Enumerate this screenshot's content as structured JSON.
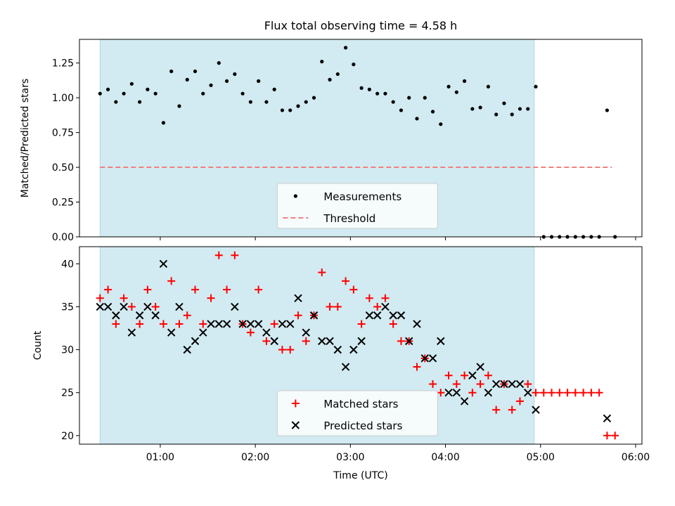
{
  "figure": {
    "title": "Flux total observing time = 4.58 h"
  },
  "colors": {
    "shade": "#add8e6",
    "threshold": "#f08080",
    "matched": "#ff0000",
    "predicted": "#000000",
    "measure": "#000000"
  },
  "chart_data": [
    {
      "type": "scatter",
      "title": "Flux total observing time = 4.58 h",
      "xlabel": "",
      "ylabel": "Matched/Predicted stars",
      "xlim": [
        "00:09",
        "06:04"
      ],
      "ylim": [
        0,
        1.42
      ],
      "yticks": [
        "0.00",
        "0.25",
        "0.50",
        "0.75",
        "1.00",
        "1.25"
      ],
      "xticks": [
        "01:00",
        "02:00",
        "03:00",
        "04:00",
        "05:00",
        "06:00"
      ],
      "shaded_interval": [
        "00:22",
        "04:56"
      ],
      "legend": {
        "position": "bottom-center",
        "entries": [
          "Measurements",
          "Threshold"
        ]
      },
      "threshold": {
        "name": "Threshold",
        "y": 0.5,
        "x": [
          "00:22",
          "05:45"
        ]
      },
      "series": [
        {
          "name": "Measurements",
          "marker": "dot",
          "x": [
            "00:22",
            "00:27",
            "00:32",
            "00:37",
            "00:42",
            "00:47",
            "00:52",
            "00:57",
            "01:02",
            "01:07",
            "01:12",
            "01:17",
            "01:22",
            "01:27",
            "01:32",
            "01:37",
            "01:42",
            "01:47",
            "01:52",
            "01:57",
            "02:02",
            "02:07",
            "02:12",
            "02:17",
            "02:22",
            "02:27",
            "02:32",
            "02:37",
            "02:42",
            "02:47",
            "02:52",
            "02:57",
            "03:02",
            "03:07",
            "03:12",
            "03:17",
            "03:22",
            "03:27",
            "03:32",
            "03:37",
            "03:42",
            "03:47",
            "03:52",
            "03:57",
            "04:02",
            "04:07",
            "04:12",
            "04:17",
            "04:22",
            "04:27",
            "04:32",
            "04:37",
            "04:42",
            "04:47",
            "04:52",
            "04:57",
            "05:02",
            "05:07",
            "05:12",
            "05:17",
            "05:22",
            "05:27",
            "05:32",
            "05:37",
            "05:42",
            "05:47"
          ],
          "y": [
            1.03,
            1.06,
            0.97,
            1.03,
            1.1,
            0.97,
            1.06,
            1.03,
            0.82,
            1.19,
            0.94,
            1.13,
            1.19,
            1.03,
            1.09,
            1.25,
            1.12,
            1.17,
            1.03,
            0.97,
            1.12,
            0.97,
            1.06,
            0.91,
            0.91,
            0.94,
            0.97,
            1.0,
            1.26,
            1.13,
            1.17,
            1.36,
            1.24,
            1.07,
            1.06,
            1.03,
            1.03,
            0.97,
            0.91,
            1.0,
            0.85,
            1.0,
            0.9,
            0.81,
            1.08,
            1.04,
            1.12,
            0.92,
            0.93,
            1.08,
            0.88,
            0.96,
            0.88,
            0.92,
            0.92,
            1.08,
            0.0,
            0.0,
            0.0,
            0.0,
            0.0,
            0.0,
            0.0,
            0.0,
            0.91,
            0.0
          ]
        }
      ]
    },
    {
      "type": "scatter",
      "title": "",
      "xlabel": "Time (UTC)",
      "ylabel": "Count",
      "xlim": [
        "00:09",
        "06:04"
      ],
      "ylim": [
        19,
        42
      ],
      "yticks": [
        "20",
        "25",
        "30",
        "35",
        "40"
      ],
      "xticks": [
        "01:00",
        "02:00",
        "03:00",
        "04:00",
        "05:00",
        "06:00"
      ],
      "shaded_interval": [
        "00:22",
        "04:56"
      ],
      "legend": {
        "position": "bottom-center",
        "entries": [
          "Matched stars",
          "Predicted stars"
        ]
      },
      "series": [
        {
          "name": "Matched stars",
          "marker": "plus",
          "x": [
            "00:22",
            "00:27",
            "00:32",
            "00:37",
            "00:42",
            "00:47",
            "00:52",
            "00:57",
            "01:02",
            "01:07",
            "01:12",
            "01:17",
            "01:22",
            "01:27",
            "01:32",
            "01:37",
            "01:42",
            "01:47",
            "01:52",
            "01:57",
            "02:02",
            "02:07",
            "02:12",
            "02:17",
            "02:22",
            "02:27",
            "02:32",
            "02:37",
            "02:42",
            "02:47",
            "02:52",
            "02:57",
            "03:02",
            "03:07",
            "03:12",
            "03:17",
            "03:22",
            "03:27",
            "03:32",
            "03:37",
            "03:42",
            "03:47",
            "03:52",
            "03:57",
            "04:02",
            "04:07",
            "04:12",
            "04:17",
            "04:22",
            "04:27",
            "04:32",
            "04:37",
            "04:42",
            "04:47",
            "04:52",
            "04:57",
            "05:02",
            "05:07",
            "05:12",
            "05:17",
            "05:22",
            "05:27",
            "05:32",
            "05:37",
            "05:42",
            "05:47"
          ],
          "y": [
            36,
            37,
            33,
            36,
            35,
            33,
            37,
            35,
            33,
            38,
            33,
            34,
            37,
            33,
            36,
            41,
            37,
            41,
            33,
            32,
            37,
            31,
            33,
            30,
            30,
            34,
            31,
            34,
            39,
            35,
            35,
            38,
            37,
            33,
            36,
            35,
            36,
            33,
            31,
            31,
            28,
            29,
            26,
            25,
            27,
            26,
            27,
            25,
            26,
            27,
            23,
            26,
            23,
            24,
            26,
            25,
            25,
            25,
            25,
            25,
            25,
            25,
            25,
            25,
            20,
            20
          ]
        },
        {
          "name": "Predicted stars",
          "marker": "x",
          "x": [
            "00:22",
            "00:27",
            "00:32",
            "00:37",
            "00:42",
            "00:47",
            "00:52",
            "00:57",
            "01:02",
            "01:07",
            "01:12",
            "01:17",
            "01:22",
            "01:27",
            "01:32",
            "01:37",
            "01:42",
            "01:47",
            "01:52",
            "01:57",
            "02:02",
            "02:07",
            "02:12",
            "02:17",
            "02:22",
            "02:27",
            "02:32",
            "02:37",
            "02:42",
            "02:47",
            "02:52",
            "02:57",
            "03:02",
            "03:07",
            "03:12",
            "03:17",
            "03:22",
            "03:27",
            "03:32",
            "03:37",
            "03:42",
            "03:47",
            "03:52",
            "03:57",
            "04:02",
            "04:07",
            "04:12",
            "04:17",
            "04:22",
            "04:27",
            "04:32",
            "04:37",
            "04:42",
            "04:47",
            "04:52",
            "04:57",
            "05:42"
          ],
          "y": [
            35,
            35,
            34,
            35,
            32,
            34,
            35,
            34,
            40,
            32,
            35,
            30,
            31,
            32,
            33,
            33,
            33,
            35,
            33,
            33,
            33,
            32,
            31,
            33,
            33,
            36,
            32,
            34,
            31,
            31,
            30,
            28,
            30,
            31,
            34,
            34,
            35,
            34,
            34,
            31,
            33,
            29,
            29,
            31,
            25,
            25,
            24,
            27,
            28,
            25,
            26,
            26,
            26,
            26,
            25,
            23,
            22
          ]
        }
      ]
    }
  ]
}
